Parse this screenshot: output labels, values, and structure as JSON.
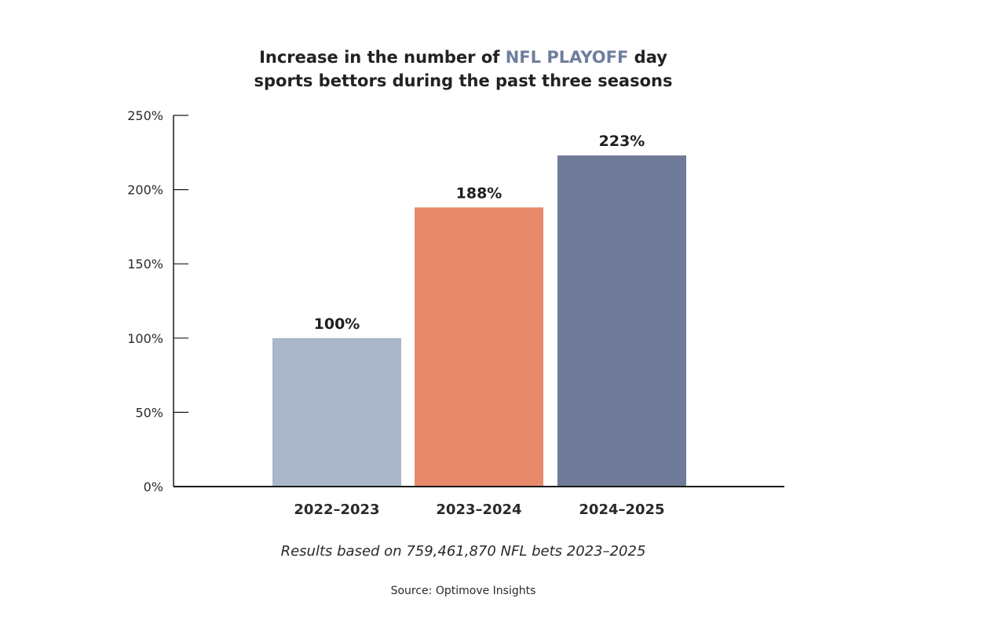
{
  "title": {
    "line1_before": "Increase in the number of ",
    "line1_highlight": "NFL PLAYOFF",
    "line1_after": " day",
    "line2": "sports bettors during the past three seasons"
  },
  "note": "Results based on 759,461,870 NFL bets 2023–2025",
  "source": "Source: Optimove Insights",
  "colors": {
    "highlight": "#6f7e9e",
    "axis": "#1a1a1a"
  },
  "chart_data": {
    "type": "bar",
    "title": "Increase in the number of NFL PLAYOFF day sports bettors during the past three seasons",
    "categories": [
      "2022–2023",
      "2023–2024",
      "2024–2025"
    ],
    "values": [
      100,
      188,
      223
    ],
    "data_labels": [
      "100%",
      "188%",
      "223%"
    ],
    "bar_colors": [
      "#aab6c9",
      "#e78a6c",
      "#6f7b98"
    ],
    "ylim": [
      0,
      250
    ],
    "yticks": [
      0,
      50,
      100,
      150,
      200,
      250
    ],
    "ytick_labels": [
      "0%",
      "50%",
      "100%",
      "150%",
      "200%",
      "250%"
    ],
    "xlabel": "",
    "ylabel": "",
    "grid": false,
    "legend": "none"
  }
}
